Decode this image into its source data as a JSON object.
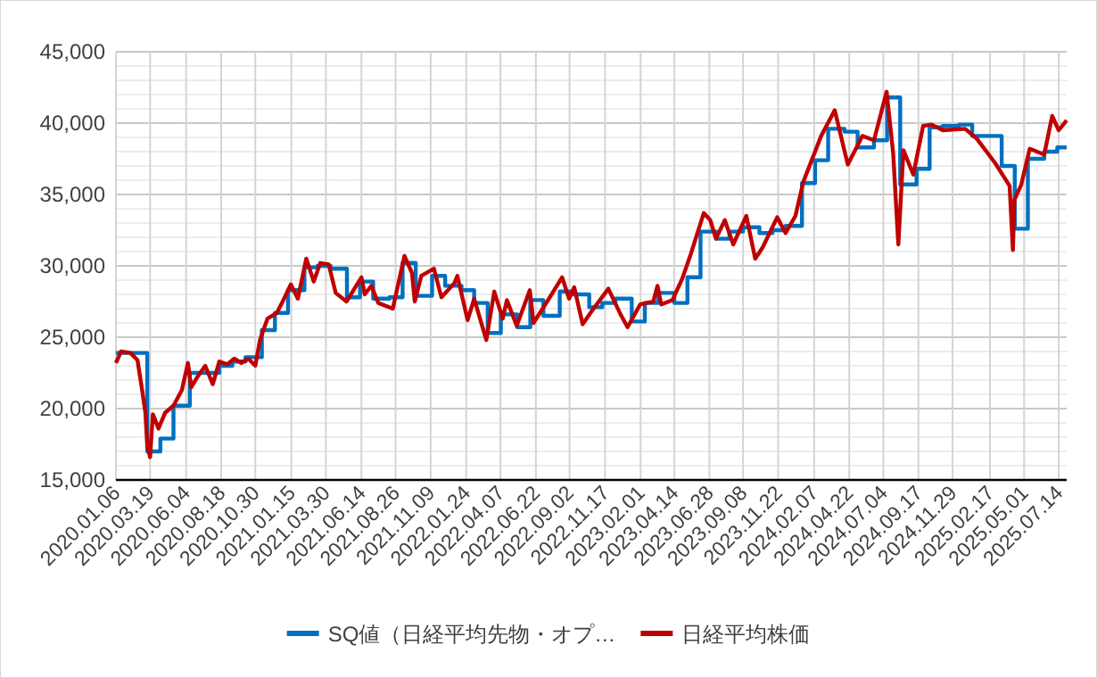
{
  "chart_data": {
    "type": "line",
    "series": [
      {
        "name": "SQ値（日経平均先物・オプ…",
        "type": "step",
        "color": "#0070c0",
        "x": [
          "2020-01-06",
          "2020-02-14",
          "2020-03-13",
          "2020-04-10",
          "2020-05-08",
          "2020-06-12",
          "2020-07-10",
          "2020-08-14",
          "2020-09-11",
          "2020-10-09",
          "2020-11-13",
          "2020-12-11",
          "2021-01-08",
          "2021-02-12",
          "2021-03-12",
          "2021-04-09",
          "2021-05-14",
          "2021-06-11",
          "2021-07-09",
          "2021-08-13",
          "2021-09-10",
          "2021-10-08",
          "2021-11-12",
          "2021-12-10",
          "2022-01-14",
          "2022-02-10",
          "2022-03-11",
          "2022-04-08",
          "2022-05-13",
          "2022-06-10",
          "2022-07-08",
          "2022-08-12",
          "2022-09-09",
          "2022-10-14",
          "2022-11-11",
          "2022-12-09",
          "2023-01-13",
          "2023-02-10",
          "2023-03-10",
          "2023-04-14",
          "2023-05-12",
          "2023-06-09",
          "2023-07-14",
          "2023-08-10",
          "2023-09-08",
          "2023-10-13",
          "2023-11-10",
          "2023-12-08",
          "2024-01-12",
          "2024-02-09",
          "2024-03-08",
          "2024-04-12",
          "2024-05-10",
          "2024-06-14",
          "2024-07-12",
          "2024-08-09",
          "2024-09-13",
          "2024-10-11",
          "2024-11-08",
          "2024-12-13",
          "2025-01-10",
          "2025-02-14",
          "2025-03-14",
          "2025-04-11",
          "2025-05-09",
          "2025-06-13",
          "2025-07-11",
          "2025-07-31"
        ],
        "values": [
          23900,
          23900,
          17000,
          17900,
          20200,
          22500,
          22500,
          23000,
          23300,
          23600,
          25500,
          26700,
          28300,
          29900,
          30000,
          29800,
          27800,
          28900,
          27700,
          27800,
          30200,
          27900,
          29300,
          28600,
          28300,
          27400,
          25300,
          26600,
          25700,
          27600,
          26500,
          28200,
          28000,
          27100,
          27400,
          27700,
          26100,
          27400,
          28100,
          27400,
          29200,
          32400,
          31900,
          32400,
          32700,
          32300,
          32500,
          32800,
          35800,
          37400,
          39600,
          39400,
          38300,
          38800,
          41800,
          35700,
          36800,
          39700,
          39800,
          39900,
          39100,
          39100,
          37000,
          32600,
          37500,
          38000,
          38300,
          38300
        ]
      },
      {
        "name": "日経平均株価",
        "color": "#c00000",
        "x": [
          "2020-01-06",
          "2020-01-17",
          "2020-02-06",
          "2020-02-21",
          "2020-03-02",
          "2020-03-09",
          "2020-03-13",
          "2020-03-19",
          "2020-03-25",
          "2020-04-06",
          "2020-04-20",
          "2020-05-08",
          "2020-05-26",
          "2020-06-08",
          "2020-06-15",
          "2020-06-30",
          "2020-07-15",
          "2020-07-31",
          "2020-08-14",
          "2020-08-31",
          "2020-09-15",
          "2020-09-30",
          "2020-10-15",
          "2020-10-30",
          "2020-11-09",
          "2020-11-25",
          "2020-12-15",
          "2020-12-29",
          "2021-01-14",
          "2021-01-29",
          "2021-02-16",
          "2021-03-04",
          "2021-03-18",
          "2021-04-05",
          "2021-04-20",
          "2021-05-13",
          "2021-06-14",
          "2021-06-21",
          "2021-07-05",
          "2021-07-20",
          "2021-08-20",
          "2021-09-14",
          "2021-09-30",
          "2021-10-06",
          "2021-10-20",
          "2021-11-16",
          "2021-12-02",
          "2021-12-30",
          "2022-01-05",
          "2022-01-27",
          "2022-02-10",
          "2022-03-08",
          "2022-03-25",
          "2022-04-12",
          "2022-04-21",
          "2022-05-12",
          "2022-06-09",
          "2022-06-17",
          "2022-07-20",
          "2022-08-17",
          "2022-09-01",
          "2022-09-12",
          "2022-09-30",
          "2022-10-21",
          "2022-11-24",
          "2022-12-20",
          "2023-01-04",
          "2023-01-31",
          "2023-02-28",
          "2023-03-09",
          "2023-03-17",
          "2023-04-10",
          "2023-05-01",
          "2023-05-19",
          "2023-06-16",
          "2023-06-30",
          "2023-07-12",
          "2023-07-31",
          "2023-08-18",
          "2023-09-15",
          "2023-10-04",
          "2023-10-20",
          "2023-11-20",
          "2023-12-08",
          "2023-12-29",
          "2024-01-15",
          "2024-02-22",
          "2024-03-22",
          "2024-04-19",
          "2024-05-20",
          "2024-06-14",
          "2024-07-11",
          "2024-07-25",
          "2024-08-05",
          "2024-08-16",
          "2024-09-06",
          "2024-09-27",
          "2024-10-15",
          "2024-11-08",
          "2024-12-26",
          "2025-01-20",
          "2025-02-28",
          "2025-03-31",
          "2025-04-07",
          "2025-04-10",
          "2025-04-25",
          "2025-05-13",
          "2025-06-13",
          "2025-06-30",
          "2025-07-14",
          "2025-07-31"
        ],
        "values": [
          23200,
          24000,
          23900,
          23400,
          21300,
          19700,
          17400,
          16600,
          19600,
          18600,
          19700,
          20200,
          21300,
          23200,
          21500,
          22300,
          23000,
          21700,
          23300,
          23100,
          23500,
          23200,
          23500,
          23000,
          24800,
          26300,
          26700,
          27600,
          28700,
          27700,
          30500,
          28900,
          30200,
          30100,
          28100,
          27500,
          29200,
          28000,
          28600,
          27400,
          27000,
          30700,
          29500,
          27500,
          29300,
          29800,
          27800,
          28800,
          29300,
          26200,
          27700,
          24800,
          28200,
          26300,
          27600,
          25800,
          28300,
          26000,
          27700,
          29200,
          27700,
          28500,
          25900,
          26900,
          28400,
          26600,
          25700,
          27300,
          27500,
          28600,
          27300,
          27600,
          29100,
          30800,
          33700,
          33200,
          31900,
          33200,
          31500,
          33500,
          30500,
          31300,
          33400,
          32300,
          33500,
          35900,
          39100,
          40900,
          37100,
          39100,
          38800,
          42200,
          37900,
          31500,
          38100,
          36400,
          39800,
          39900,
          39500,
          39600,
          38900,
          37200,
          35600,
          31100,
          34600,
          35700,
          38200,
          37800,
          40500,
          39500,
          40200
        ]
      }
    ],
    "xlim": [
      "2020-01-06",
      "2025-07-31"
    ],
    "xticks": [
      {
        "value": "2020-01-06",
        "label": "2020.01.06"
      },
      {
        "value": "2020-03-19",
        "label": "2020.03.19"
      },
      {
        "value": "2020-06-04",
        "label": "2020.06.04"
      },
      {
        "value": "2020-08-18",
        "label": "2020.08.18"
      },
      {
        "value": "2020-10-30",
        "label": "2020.10.30"
      },
      {
        "value": "2021-01-15",
        "label": "2021.01.15"
      },
      {
        "value": "2021-03-30",
        "label": "2021.03.30"
      },
      {
        "value": "2021-06-14",
        "label": "2021.06.14"
      },
      {
        "value": "2021-08-26",
        "label": "2021.08.26"
      },
      {
        "value": "2021-11-09",
        "label": "2021.11.09"
      },
      {
        "value": "2022-01-24",
        "label": "2022.01.24"
      },
      {
        "value": "2022-04-07",
        "label": "2022.04.07"
      },
      {
        "value": "2022-06-22",
        "label": "2022.06.22"
      },
      {
        "value": "2022-09-02",
        "label": "2022.09.02"
      },
      {
        "value": "2022-11-17",
        "label": "2022.11.17"
      },
      {
        "value": "2023-02-01",
        "label": "2023.02.01"
      },
      {
        "value": "2023-04-14",
        "label": "2023.04.14"
      },
      {
        "value": "2023-06-28",
        "label": "2023.06.28"
      },
      {
        "value": "2023-09-08",
        "label": "2023.09.08"
      },
      {
        "value": "2023-11-22",
        "label": "2023.11.22"
      },
      {
        "value": "2024-02-07",
        "label": "2024.02.07"
      },
      {
        "value": "2024-04-22",
        "label": "2024.04.22"
      },
      {
        "value": "2024-07-04",
        "label": "2024.07.04"
      },
      {
        "value": "2024-09-17",
        "label": "2024.09.17"
      },
      {
        "value": "2024-11-29",
        "label": "2024.11.29"
      },
      {
        "value": "2025-02-17",
        "label": "2025.02.17"
      },
      {
        "value": "2025-05-01",
        "label": "2025.05.01"
      },
      {
        "value": "2025-07-14",
        "label": "2025.07.14"
      }
    ],
    "ylim": [
      15000,
      45000
    ],
    "yticks": [
      {
        "value": 15000,
        "label": "15,000"
      },
      {
        "value": 20000,
        "label": "20,000"
      },
      {
        "value": 25000,
        "label": "25,000"
      },
      {
        "value": 30000,
        "label": "30,000"
      },
      {
        "value": 35000,
        "label": "35,000"
      },
      {
        "value": 40000,
        "label": "40,000"
      },
      {
        "value": 45000,
        "label": "45,000"
      }
    ],
    "grid": true,
    "legend": "bottom"
  }
}
